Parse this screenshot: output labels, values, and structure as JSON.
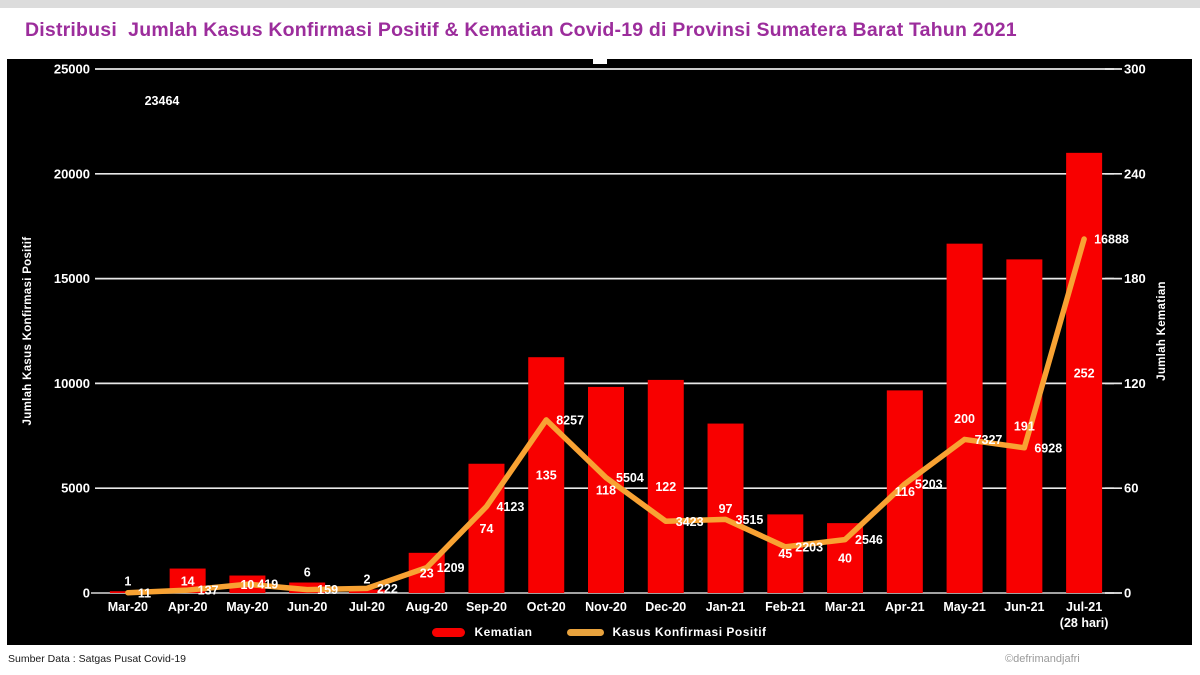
{
  "title": "Distribusi  Jumlah Kasus Konfirmasi Positif & Kematian Covid-19 di Provinsi Sumatera Barat Tahun 2021",
  "footer": {
    "source": "Sumber Data : Satgas Pusat Covid-19",
    "credit": "©defrimandjafri"
  },
  "chart_data": {
    "type": "bar+line combo",
    "title": "Distribusi Jumlah Kasus Konfirmasi Positif & Kematian Covid-19 di Provinsi Sumatera Barat Tahun 2021",
    "categories": [
      "Mar-20",
      "Apr-20",
      "May-20",
      "Jun-20",
      "Jul-20",
      "Aug-20",
      "Sep-20",
      "Oct-20",
      "Nov-20",
      "Dec-20",
      "Jan-21",
      "Feb-21",
      "Mar-21",
      "Apr-21",
      "May-21",
      "Jun-21",
      "Jul-21"
    ],
    "x_sublabel": "(28 hari)",
    "series": [
      {
        "name": "Kematian",
        "type": "bar",
        "axis": "right",
        "color": "#F80000",
        "values": [
          1,
          14,
          10,
          6,
          2,
          23,
          74,
          135,
          118,
          122,
          97,
          45,
          40,
          116,
          200,
          191,
          252
        ]
      },
      {
        "name": "Kasus Konfirmasi Positif",
        "type": "line",
        "axis": "left",
        "color": "#F8A233",
        "values": [
          11,
          137,
          419,
          159,
          222,
          1209,
          4123,
          8257,
          5504,
          3423,
          3515,
          2203,
          2546,
          5203,
          7327,
          6928,
          16888
        ]
      }
    ],
    "left_axis": {
      "label": "Jumlah Kasus Konfirmasi Positif",
      "min": 0,
      "max": 25000,
      "ticks": [
        0,
        5000,
        10000,
        15000,
        20000,
        25000
      ]
    },
    "right_axis": {
      "label": "Jumlah Kematian",
      "min": 0,
      "max": 300,
      "ticks": [
        0,
        60,
        120,
        180,
        240,
        300
      ]
    },
    "annotation_label": "23464",
    "grid": "horizontal white lines on black background",
    "legend_position": "bottom center",
    "legend": [
      {
        "label": "Kematian",
        "color": "#F80000"
      },
      {
        "label": "Kasus Konfirmasi Positif",
        "color": "#E8A23D"
      }
    ]
  }
}
